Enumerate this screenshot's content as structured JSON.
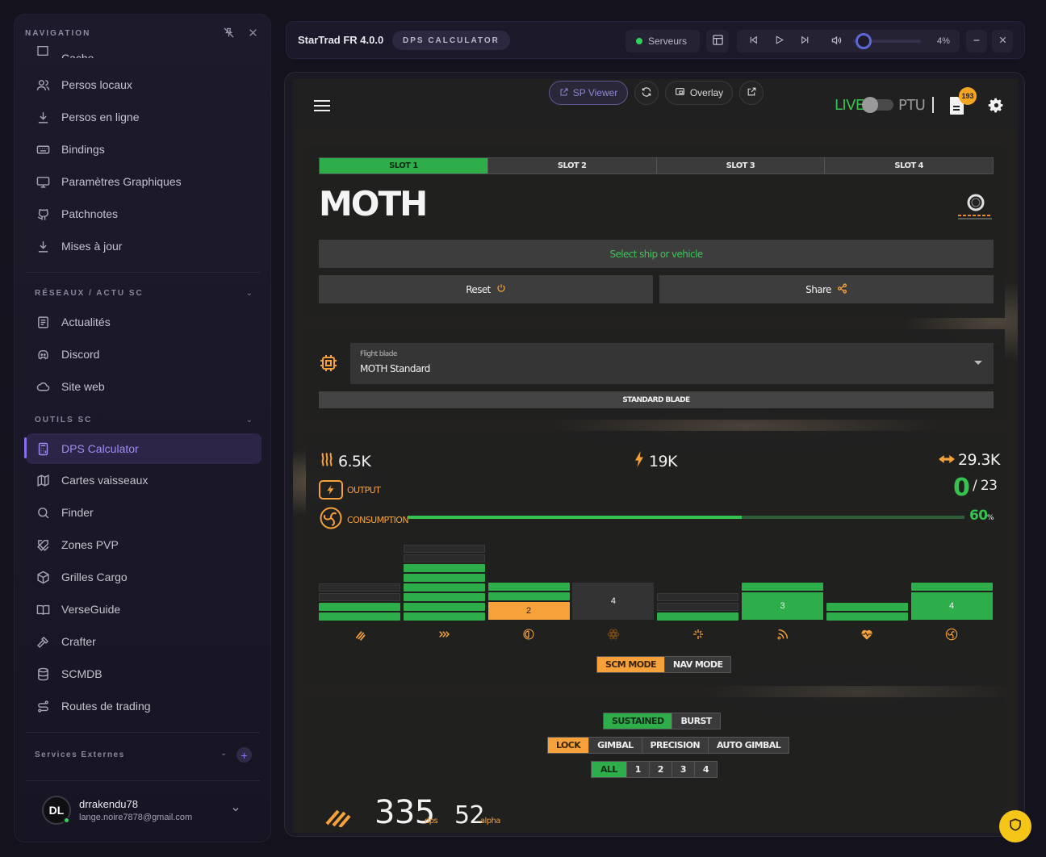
{
  "sidebar": {
    "nav_header": "NAVIGATION",
    "partial_item": "Cache",
    "items": [
      {
        "label": "Persos locaux",
        "icon": "users-icon"
      },
      {
        "label": "Persos en ligne",
        "icon": "download-icon"
      },
      {
        "label": "Bindings",
        "icon": "keyboard-icon"
      },
      {
        "label": "Paramètres Graphiques",
        "icon": "monitor-icon"
      },
      {
        "label": "Patchnotes",
        "icon": "github-icon"
      },
      {
        "label": "Mises à jour",
        "icon": "download-icon"
      }
    ],
    "section_news": "RÉSEAUX / ACTU SC",
    "news_items": [
      {
        "label": "Actualités",
        "icon": "newspaper-icon"
      },
      {
        "label": "Discord",
        "icon": "discord-icon"
      },
      {
        "label": "Site web",
        "icon": "cloud-icon"
      }
    ],
    "section_tools": "OUTILS SC",
    "tool_items": [
      {
        "label": "DPS Calculator",
        "icon": "calculator-icon"
      },
      {
        "label": "Cartes vaisseaux",
        "icon": "map-icon"
      },
      {
        "label": "Finder",
        "icon": "search-icon"
      },
      {
        "label": "Zones PVP",
        "icon": "swords-icon"
      },
      {
        "label": "Grilles Cargo",
        "icon": "box-icon"
      },
      {
        "label": "VerseGuide",
        "icon": "book-icon"
      },
      {
        "label": "Crafter",
        "icon": "hammer-icon"
      },
      {
        "label": "SCMDB",
        "icon": "database-icon"
      },
      {
        "label": "Routes de trading",
        "icon": "route-icon"
      }
    ],
    "section_external": "Services Externes",
    "user": {
      "initials": "DL",
      "name": "drrakendu78",
      "email": "lange.noire7878@gmail.com"
    }
  },
  "topbar": {
    "brand": "StarTrad FR 4.0.0",
    "page_pill": "DPS CALCULATOR",
    "servers_label": "Serveurs",
    "volume_percent": "4%",
    "volume_level": 0.04
  },
  "app": {
    "sp_viewer": "SP Viewer",
    "overlay": "Overlay",
    "live_label": "LIVE",
    "ptu_label": "PTU",
    "notif_count": "193",
    "slots": [
      "SLOT 1",
      "SLOT 2",
      "SLOT 3",
      "SLOT 4"
    ],
    "ship_name": "MOTH",
    "select_ship": "Select ship or vehicle",
    "reset": "Reset",
    "share": "Share",
    "flight_blade_label": "Flight blade",
    "flight_blade_value": "MOTH Standard",
    "standard_blade": "STANDARD BLADE",
    "heat": "6.5K",
    "power": "19K",
    "signature": "29.3K",
    "output_label": "OUTPUT",
    "consumption_label": "CONSUMPTION",
    "output_value": "0",
    "output_max": "/ 23",
    "consumption_percent": "60",
    "percent_sign": "%",
    "consumption_fraction": 0.6,
    "power_columns": [
      {
        "filled": 2,
        "total": 4,
        "label": "",
        "color": "#2eae4b",
        "icon": "weapons-icon"
      },
      {
        "filled": 6,
        "total": 8,
        "label": "",
        "color": "#2eae4b",
        "icon": "thrusters-icon"
      },
      {
        "filled": 3,
        "total": 3,
        "label": "2",
        "color": "#f7a13a",
        "icon": "shield-icon"
      },
      {
        "filled": 0,
        "total": 1,
        "label": "4",
        "color": "#333333",
        "icon": "quantum-icon"
      },
      {
        "filled": 1,
        "total": 3,
        "label": "",
        "color": "#2eae4b",
        "icon": "radar-icon"
      },
      {
        "filled": 1,
        "total": 1,
        "label": "3",
        "color": "#2eae4b",
        "icon": "comms-icon"
      },
      {
        "filled": 2,
        "total": 2,
        "label": "",
        "color": "#2eae4b",
        "icon": "life-support-icon"
      },
      {
        "filled": 2,
        "total": 2,
        "label": "4",
        "color": "#2eae4b",
        "icon": "cooler-icon"
      }
    ],
    "modes": [
      "SCM MODE",
      "NAV MODE"
    ],
    "damage_modes": [
      "SUSTAINED",
      "BURST"
    ],
    "aim_modes": [
      "LOCK",
      "GIMBAL",
      "PRECISION",
      "AUTO GIMBAL"
    ],
    "groups": [
      "ALL",
      "1",
      "2",
      "3",
      "4"
    ],
    "dps_value": "335",
    "dps_unit": "dps",
    "alpha_value": "52",
    "alpha_unit": "alpha"
  }
}
